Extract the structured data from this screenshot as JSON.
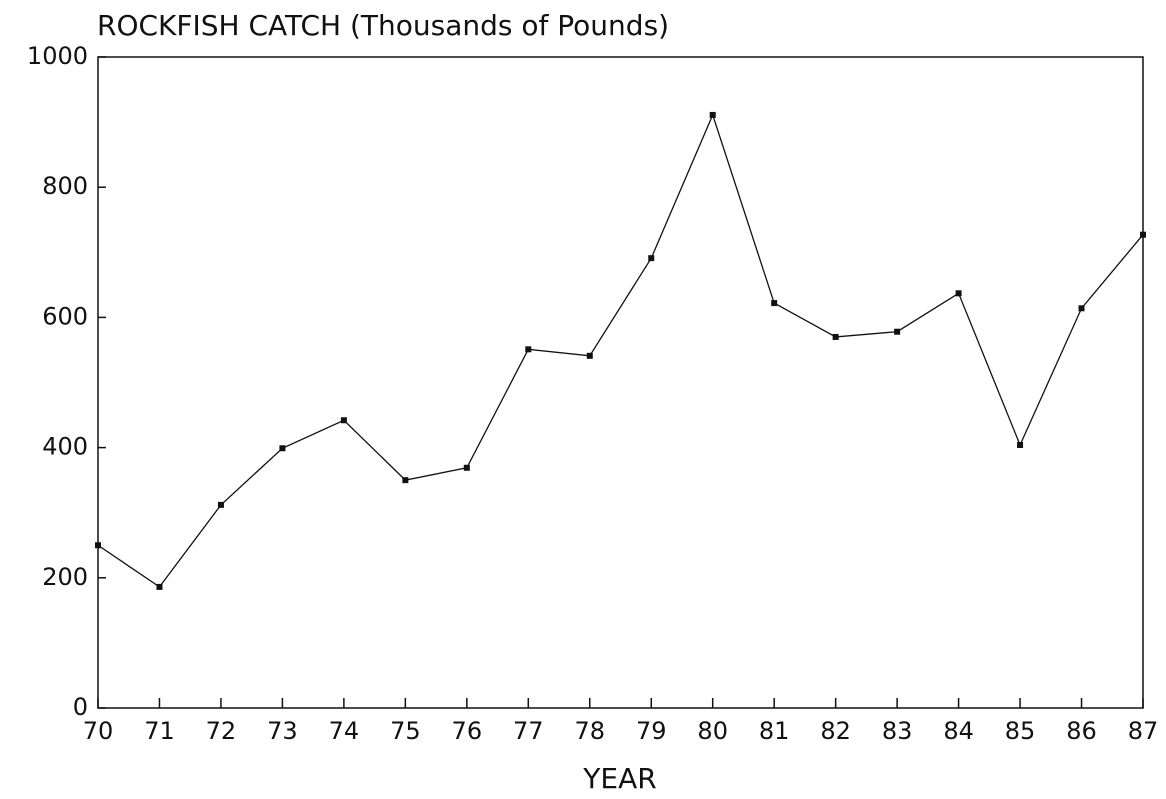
{
  "chart_data": {
    "type": "line",
    "title": "ROCKFISH CATCH (Thousands of Pounds)",
    "x_label": "YEAR",
    "x": [
      70,
      71,
      72,
      73,
      74,
      75,
      76,
      77,
      78,
      79,
      80,
      81,
      82,
      83,
      84,
      85,
      86,
      87
    ],
    "series": [
      {
        "color": "#111111",
        "values": [
          250,
          186,
          312,
          399,
          442,
          350,
          369,
          551,
          541,
          691,
          911,
          622,
          570,
          578,
          637,
          404,
          614,
          727
        ]
      }
    ],
    "xlim": [
      70,
      87
    ],
    "xticks": [
      70,
      71,
      72,
      73,
      74,
      75,
      76,
      77,
      78,
      79,
      80,
      81,
      82,
      83,
      84,
      85,
      86,
      87
    ],
    "ylim": [
      0,
      1000
    ],
    "yticks": [
      0,
      200,
      400,
      600,
      800,
      1000
    ],
    "grid": false
  }
}
